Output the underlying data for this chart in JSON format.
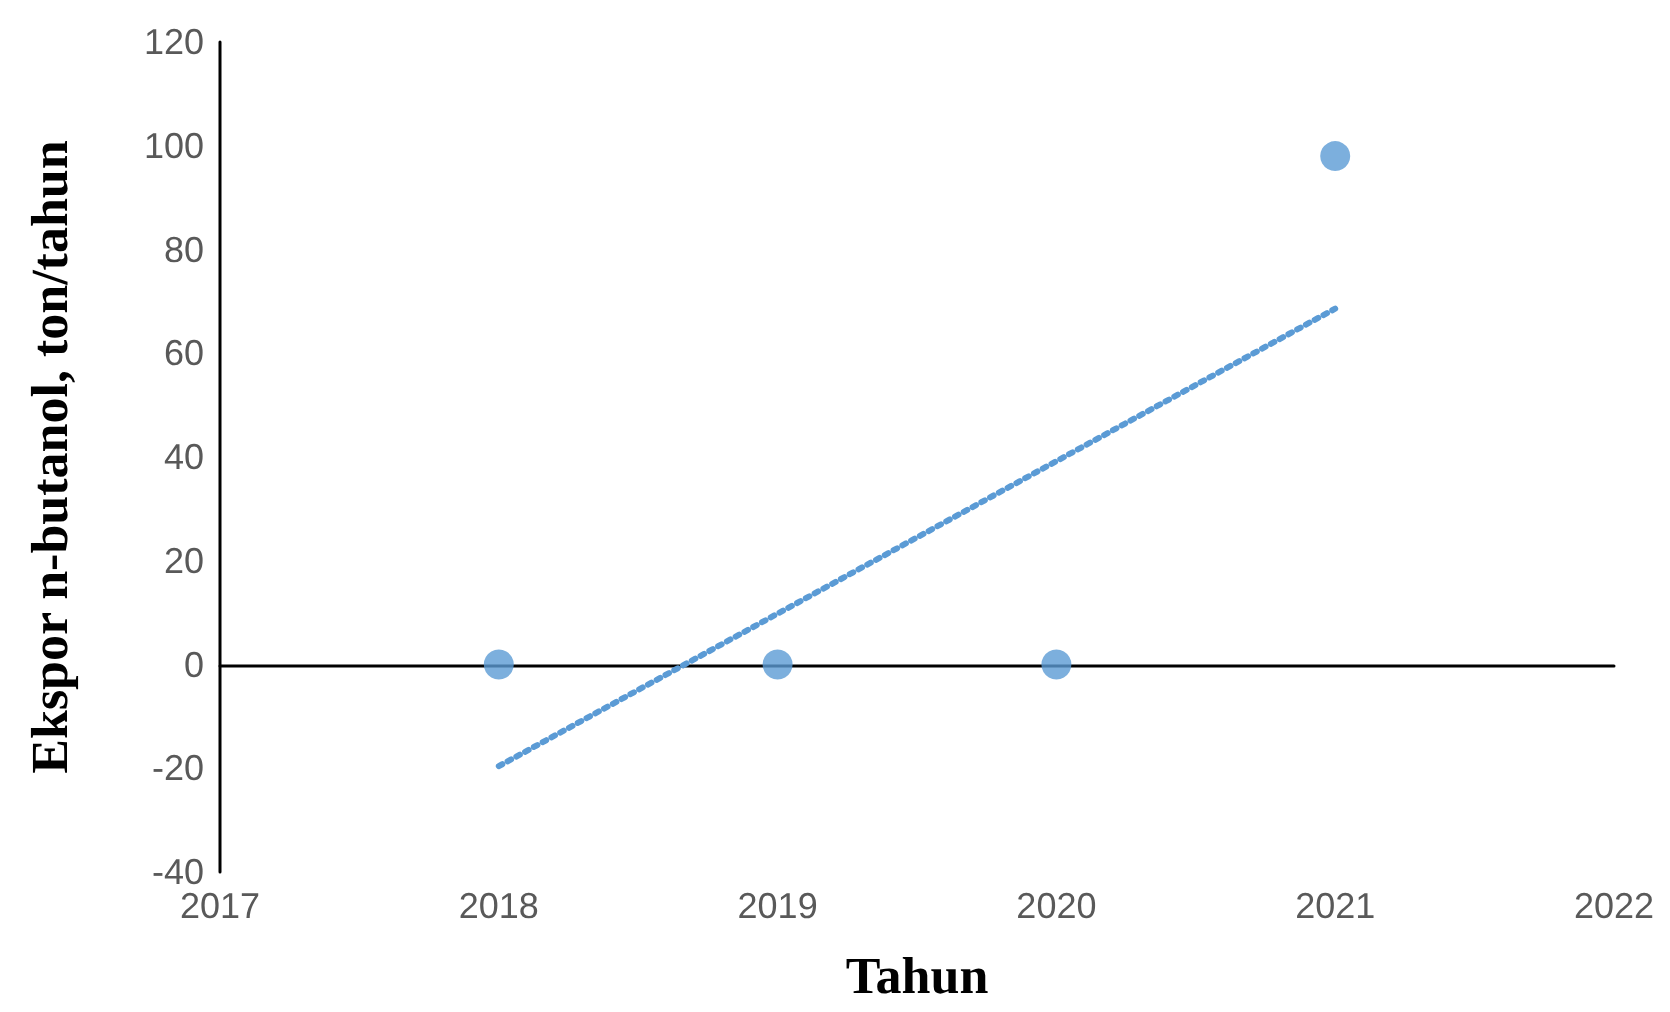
{
  "chart_data": {
    "type": "scatter",
    "xlabel": "Tahun",
    "ylabel": "Ekspor n-butanol, ton/tahun",
    "series": [
      {
        "color": "#5b9bd5",
        "marker": "circle",
        "x": [
          2018,
          2019,
          2020,
          2021
        ],
        "values": [
          0,
          0,
          0,
          98
        ]
      },
      {
        "type": "line",
        "color": "#5b9bd5",
        "marker": "none",
        "line_style": "dotted",
        "x": [
          2018,
          2021
        ],
        "values": [
          -19.6,
          68.6
        ]
      }
    ],
    "xlim": [
      2017,
      2022
    ],
    "xticks": [
      2017,
      2018,
      2019,
      2020,
      2021,
      2022
    ],
    "ylim": [
      -40,
      120
    ],
    "yticks": [
      -40,
      -20,
      0,
      20,
      40,
      60,
      80,
      100,
      120
    ]
  }
}
